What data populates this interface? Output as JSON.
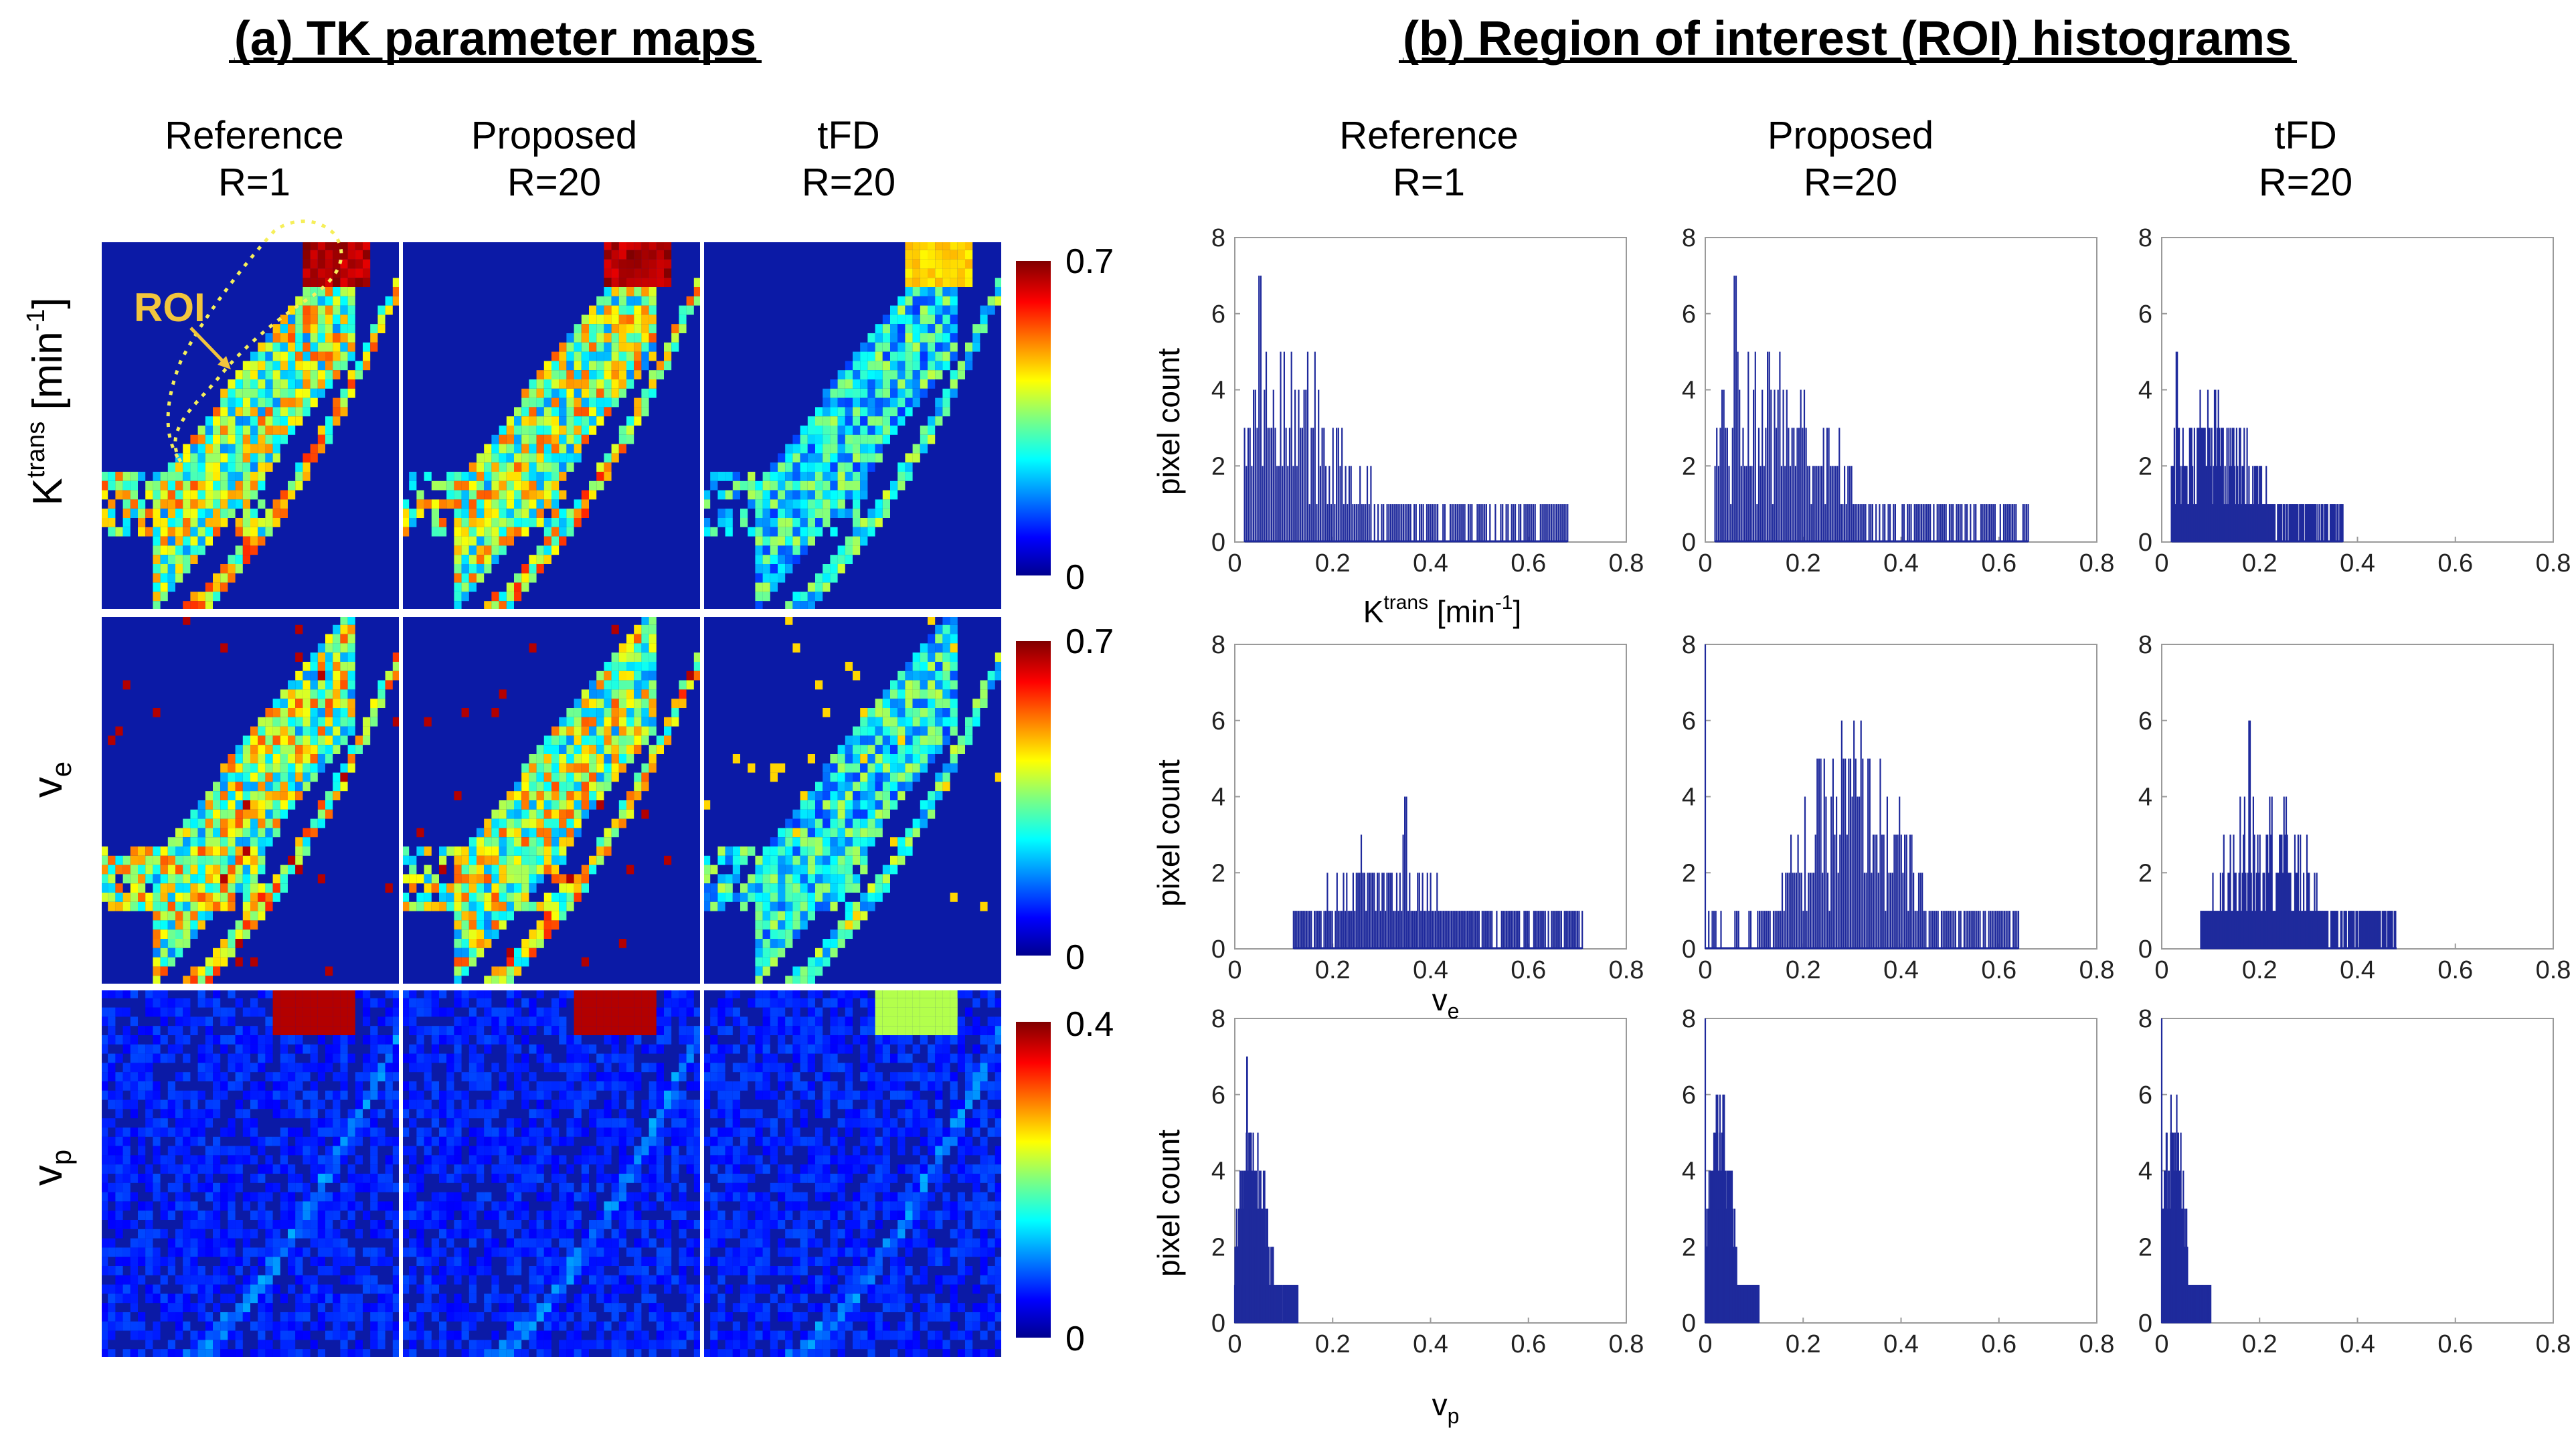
{
  "panel_a": {
    "title": "(a) TK parameter maps",
    "columns": [
      {
        "line1": "Reference",
        "line2": "R=1"
      },
      {
        "line1": "Proposed",
        "line2": "R=20"
      },
      {
        "line1": "tFD",
        "line2": "R=20"
      }
    ],
    "rows": [
      {
        "param": "Ktrans",
        "label_main": "K",
        "label_sup": "trans",
        "label_unit": " [min",
        "label_unit_sup": "-1",
        "label_close": "]",
        "cb_max": "0.7",
        "cb_min": "0"
      },
      {
        "param": "ve",
        "label_main": "v",
        "label_sub": "e",
        "cb_max": "0.7",
        "cb_min": "0"
      },
      {
        "param": "vp",
        "label_main": "v",
        "label_sub": "p",
        "cb_max": "0.4",
        "cb_min": "0"
      }
    ],
    "roi_label": "ROI",
    "colors": {
      "map_background": "#0b1aa6",
      "roi_label": "#f2c53d"
    }
  },
  "panel_b": {
    "title": "(b) Region of interest (ROI) histograms",
    "columns": [
      {
        "line1": "Reference",
        "line2": "R=1"
      },
      {
        "line1": "Proposed",
        "line2": "R=20"
      },
      {
        "line1": "tFD",
        "line2": "R=20"
      }
    ],
    "ylabel": "pixel count",
    "xlabels": [
      {
        "main": "K",
        "sup": "trans",
        "unit": " [min",
        "unit_sup": "-1",
        "close": "]"
      },
      {
        "main": "v",
        "sub": "e"
      },
      {
        "main": "v",
        "sub": "p"
      }
    ]
  },
  "chart_data": {
    "type": "histogram",
    "title": "(b) Region of interest (ROI) histograms",
    "xlim": [
      0,
      0.8
    ],
    "ylim": [
      0,
      8
    ],
    "xticks": [
      "0",
      "0.2",
      "0.4",
      "0.6",
      "0.8"
    ],
    "yticks": [
      "0",
      "2",
      "4",
      "6",
      "8"
    ],
    "ylabel": "pixel count",
    "bar_color": "#1f2a9c",
    "histograms": [
      {
        "row": "Ktrans",
        "method": "Reference R=1",
        "x_range": [
          0.02,
          0.68
        ],
        "peak": 7,
        "peak_x": 0.05,
        "center": 0.1,
        "spread": 0.12,
        "tail_to": 0.68
      },
      {
        "row": "Ktrans",
        "method": "Proposed R=20",
        "x_range": [
          0.02,
          0.66
        ],
        "peak": 7,
        "peak_x": 0.06,
        "center": 0.12,
        "spread": 0.13,
        "tail_to": 0.66
      },
      {
        "row": "Ktrans",
        "method": "tFD R=20",
        "x_range": [
          0.02,
          0.37
        ],
        "peak": 5,
        "peak_x": 0.03,
        "center": 0.1,
        "spread": 0.09,
        "tail_to": 0.37
      },
      {
        "row": "ve",
        "method": "Reference R=1",
        "x_range": [
          0.12,
          0.71
        ],
        "peak": 4,
        "peak_x": 0.35,
        "center": 0.32,
        "spread": 0.12,
        "tail_to": 0.71
      },
      {
        "row": "ve",
        "method": "Proposed R=20",
        "x_range": [
          0.0,
          0.64
        ],
        "peak": 8,
        "peak_x": 0.0,
        "center": 0.3,
        "spread": 0.1,
        "tail_to": 0.64
      },
      {
        "row": "ve",
        "method": "tFD R=20",
        "x_range": [
          0.08,
          0.48
        ],
        "peak": 6,
        "peak_x": 0.18,
        "center": 0.21,
        "spread": 0.08,
        "tail_to": 0.48
      },
      {
        "row": "vp",
        "method": "Reference R=1",
        "x_range": [
          0.0,
          0.13
        ],
        "peak": 7,
        "peak_x": 0.025,
        "center": 0.035,
        "spread": 0.03,
        "tail_to": 0.13
      },
      {
        "row": "vp",
        "method": "Proposed R=20",
        "x_range": [
          0.0,
          0.11
        ],
        "peak": 8,
        "peak_x": 0.0,
        "center": 0.03,
        "spread": 0.025,
        "tail_to": 0.11
      },
      {
        "row": "vp",
        "method": "tFD R=20",
        "x_range": [
          0.0,
          0.1
        ],
        "peak": 8,
        "peak_x": 0.0,
        "center": 0.025,
        "spread": 0.02,
        "tail_to": 0.1
      }
    ]
  }
}
